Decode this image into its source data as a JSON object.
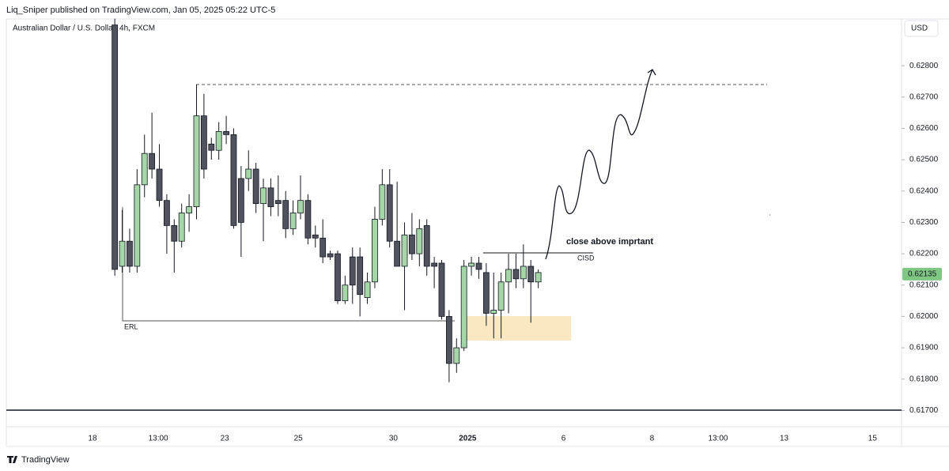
{
  "header": {
    "publisher": "Liq_Sniper published on TradingView.com, Jan 05, 2025 05:22 UTC-5"
  },
  "footer": {
    "brand": "TradingView"
  },
  "chart_data": {
    "type": "candlestick",
    "title": "Australian Dollar / U.S. Dollar, 4h, FXCM",
    "currency": "USD",
    "up_color": "#a5d6a7",
    "down_color": "#50535e",
    "open": [
      0.6293,
      0.6216,
      0.6224,
      0.6216,
      0.6242,
      0.6252,
      0.6247,
      0.6237,
      0.6229,
      0.6224,
      0.6233,
      0.6235,
      0.6264,
      0.6255,
      0.6253,
      0.6259,
      0.6258,
      0.6244,
      0.6244,
      0.6247,
      0.6236,
      0.6241,
      0.6237,
      0.6237,
      0.6228,
      0.6233,
      0.6237,
      0.6226,
      0.6225,
      0.622,
      0.622,
      0.6205,
      0.6219,
      0.6219,
      0.6206,
      0.6211,
      0.6231,
      0.6242,
      0.6224,
      0.6216,
      0.6226,
      0.622,
      0.6229,
      0.6217,
      0.6217,
      0.62,
      0.6185,
      0.619,
      0.6216,
      0.6217,
      0.6214,
      0.6201,
      0.6202,
      0.6211,
      0.6215,
      0.6212,
      0.6216,
      0.6211
    ],
    "high": [
      0.6295,
      0.6234,
      0.6228,
      0.6247,
      0.6258,
      0.6265,
      0.6255,
      0.6239,
      0.6231,
      0.6236,
      0.6239,
      0.6274,
      0.6271,
      0.6257,
      0.6262,
      0.6264,
      0.626,
      0.6248,
      0.6253,
      0.6249,
      0.6244,
      0.6244,
      0.6245,
      0.624,
      0.6237,
      0.6245,
      0.6239,
      0.6229,
      0.6231,
      0.6221,
      0.6221,
      0.6213,
      0.6222,
      0.6222,
      0.6214,
      0.6235,
      0.6247,
      0.6247,
      0.6243,
      0.623,
      0.6233,
      0.6231,
      0.6231,
      0.6219,
      0.6218,
      0.6202,
      0.6193,
      0.6218,
      0.6219,
      0.6219,
      0.6217,
      0.6214,
      0.6214,
      0.622,
      0.622,
      0.6223,
      0.6218,
      0.6215
    ],
    "low": [
      0.6213,
      0.6214,
      0.6214,
      0.6214,
      0.6238,
      0.6244,
      0.6235,
      0.622,
      0.6214,
      0.6222,
      0.6227,
      0.6231,
      0.6244,
      0.625,
      0.625,
      0.6255,
      0.6228,
      0.6219,
      0.624,
      0.6233,
      0.6224,
      0.6232,
      0.6232,
      0.6225,
      0.6226,
      0.6231,
      0.6223,
      0.6222,
      0.6217,
      0.6218,
      0.6204,
      0.6204,
      0.6204,
      0.62,
      0.6204,
      0.6209,
      0.6229,
      0.6222,
      0.6216,
      0.6202,
      0.6218,
      0.6216,
      0.6213,
      0.6209,
      0.6199,
      0.6179,
      0.6182,
      0.6189,
      0.6213,
      0.6212,
      0.6197,
      0.6193,
      0.6193,
      0.6201,
      0.6209,
      0.6209,
      0.6198,
      0.6209
    ],
    "close": [
      0.6215,
      0.6224,
      0.6216,
      0.6242,
      0.6252,
      0.6247,
      0.6237,
      0.6229,
      0.6224,
      0.6233,
      0.6235,
      0.6264,
      0.6247,
      0.6253,
      0.6259,
      0.6258,
      0.6229,
      0.623,
      0.6247,
      0.6236,
      0.6241,
      0.6235,
      0.6236,
      0.6228,
      0.6233,
      0.6237,
      0.6225,
      0.6225,
      0.6219,
      0.6219,
      0.6205,
      0.621,
      0.621,
      0.6207,
      0.6211,
      0.6231,
      0.6242,
      0.6224,
      0.6216,
      0.6226,
      0.622,
      0.6228,
      0.6216,
      0.6216,
      0.62,
      0.6185,
      0.619,
      0.6216,
      0.6217,
      0.6215,
      0.6201,
      0.6202,
      0.6211,
      0.6215,
      0.6212,
      0.6216,
      0.6211,
      0.6214
    ],
    "xlim": [
      -14.6,
      105.9
    ],
    "xticks": [
      {
        "value": -3,
        "label": "18"
      },
      {
        "value": 5.85,
        "label": "13:00"
      },
      {
        "value": 14.8,
        "label": "23"
      },
      {
        "value": 24.7,
        "label": "25"
      },
      {
        "value": 37.5,
        "label": "30"
      },
      {
        "value": 47.5,
        "label": "2025"
      },
      {
        "value": 60.4,
        "label": "6"
      },
      {
        "value": 72.3,
        "label": "8"
      },
      {
        "value": 81.2,
        "label": "13:00"
      },
      {
        "value": 90.1,
        "label": "13"
      },
      {
        "value": 102,
        "label": "15"
      }
    ],
    "ylim": [
      0.61648,
      0.62939
    ],
    "yticks": [
      {
        "value": 0.617,
        "label": "0.61700"
      },
      {
        "value": 0.618,
        "label": "0.61800"
      },
      {
        "value": 0.619,
        "label": "0.61900"
      },
      {
        "value": 0.62,
        "label": "0.62000"
      },
      {
        "value": 0.621,
        "label": "0.62100"
      },
      {
        "value": 0.622,
        "label": "0.62200"
      },
      {
        "value": 0.623,
        "label": "0.62300"
      },
      {
        "value": 0.624,
        "label": "0.62400"
      },
      {
        "value": 0.625,
        "label": "0.62500"
      },
      {
        "value": 0.626,
        "label": "0.62600"
      },
      {
        "value": 0.627,
        "label": "0.62700"
      },
      {
        "value": 0.628,
        "label": "0.62800"
      }
    ],
    "last_price": {
      "value": 0.62135,
      "label": "0.62135",
      "color": "#81c784"
    },
    "annotations": [
      "close above imprtant",
      "CISD",
      "ERL"
    ]
  }
}
